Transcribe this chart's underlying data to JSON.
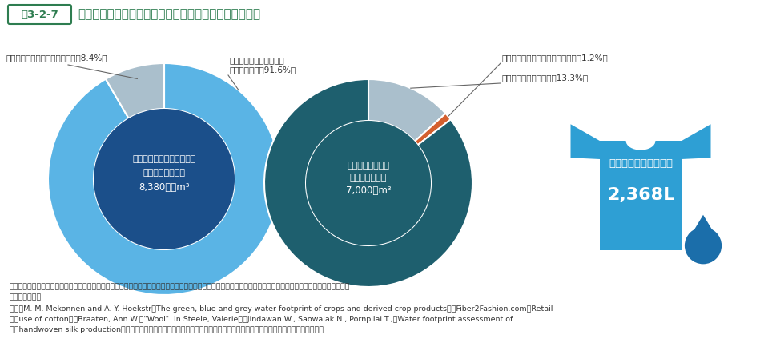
{
  "title_box": "図3-2-7",
  "title_text": "国内に供給される衣料品、ファッション産業の水消費量",
  "donut1": {
    "center_label_line1": "日本に供給される衣料品の",
    "center_label_line2": "水資源の利用状況",
    "center_label_line3": "8,380百万m³",
    "slices": [
      91.6,
      8.4
    ],
    "colors": [
      "#5ab4e5",
      "#aabfcc"
    ],
    "inner_color": "#1b4f8a",
    "annot_raw": [
      "原材料調達段階における\n水消費の割合（91.6%）",
      "染色段階における水消費の割合（8.4%）"
    ]
  },
  "donut2": {
    "center_label_line1": "世界の工業用水に",
    "center_label_line2": "おける水消費量",
    "center_label_line3": "7,000億m³",
    "slices": [
      13.3,
      1.2,
      85.5
    ],
    "colors": [
      "#aabfcc",
      "#d45f2e",
      "#1e5f6e"
    ],
    "inner_color": "#1e5f6e",
    "annot_raw": [
      "世界の衣料品の水消費（13.3%）",
      "日本で供給される衣料品の水消費（1.2%）",
      ""
    ]
  },
  "shirt": {
    "label_line1": "服１着当たり必要な水",
    "label_line2": "2,368L",
    "color": "#2e9fd4",
    "drop_color": "#1b6eaa"
  },
  "note_line1": "注：原材料調達においては天然繊維、動物繊維のみ算出対象とした（化学繊維の８割は水消費がない他、残り２割は途上国はじめ循環利用されているとのヒアリング",
  "note_line2": "　　結果より）",
  "source_line1": "資料：M. M. Mekonnen and A. Y. Hoekstr「The green, blue and grey water footprint of crops and derived crop products」、Fiber2Fashion.com「Retail",
  "source_line2": "　　use of cotton」、Braaten, Ann W.「\"Wool\". In Steele, Valerie」、Jindawan W., Saowalak N., Pornpilai T.,「Water footprint assessment of",
  "source_line3": "　　handwoven silk production」、環境省「ウォーターフットプリント算出事例集」、繊維ハンドブックより日本総合研究所作成",
  "bg_color": "#ffffff",
  "text_color": "#333333",
  "title_color": "#2e7d50",
  "line_color": "#666666"
}
